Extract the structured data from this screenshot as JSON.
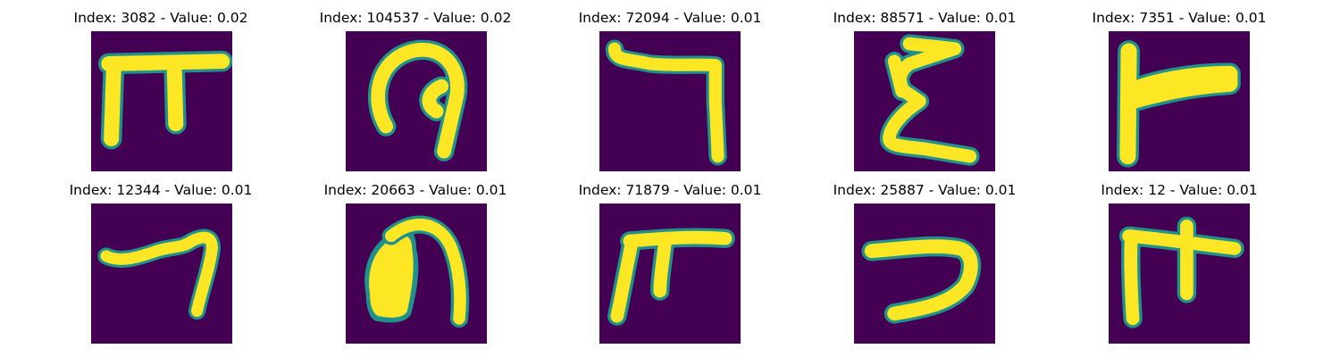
{
  "colors": {
    "background": "#440154",
    "edge": "#21918c",
    "mid": "#5ec962",
    "foreground": "#fde725"
  },
  "panels": [
    {
      "title": "Index: 3082 - Value: 0.02",
      "glyph": "pi-shape-icon"
    },
    {
      "title": "Index: 104537 - Value: 0.02",
      "glyph": "loop-shape-icon"
    },
    {
      "title": "Index: 72094 - Value: 0.01",
      "glyph": "hook-shape-icon"
    },
    {
      "title": "Index: 88571 - Value: 0.01",
      "glyph": "sigma-shape-icon"
    },
    {
      "title": "Index: 7351 - Value: 0.01",
      "glyph": "flag-shape-icon"
    },
    {
      "title": "Index: 12344 - Value: 0.01",
      "glyph": "seven-shape-icon"
    },
    {
      "title": "Index: 20663 - Value: 0.01",
      "glyph": "arch-shape-icon"
    },
    {
      "title": "Index: 71879 - Value: 0.01",
      "glyph": "gate-shape-icon"
    },
    {
      "title": "Index: 25887 - Value: 0.01",
      "glyph": "curve-shape-icon"
    },
    {
      "title": "Index: 12 - Value: 0.01",
      "glyph": "tee-shape-icon"
    }
  ]
}
